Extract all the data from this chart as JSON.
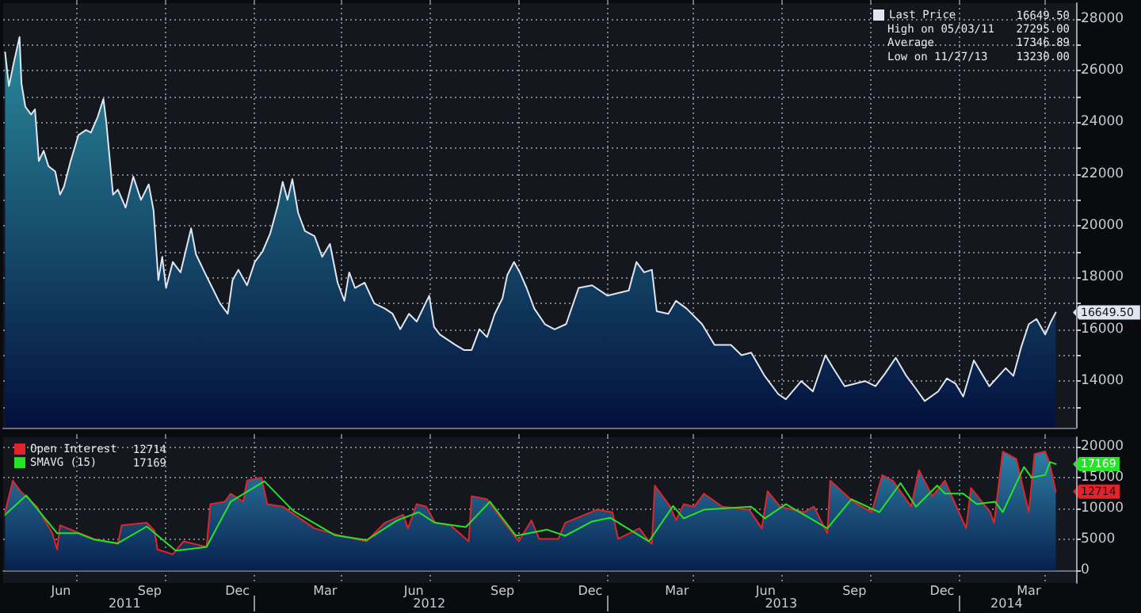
{
  "chart_data": [
    {
      "type": "area",
      "x": [
        "2011-04-18",
        "2011-04-22",
        "2011-04-27",
        "2011-05-03",
        "2011-05-05",
        "2011-05-09",
        "2011-05-15",
        "2011-05-19",
        "2011-05-23",
        "2011-05-28",
        "2011-06-02",
        "2011-06-09",
        "2011-06-14",
        "2011-06-18",
        "2011-06-25",
        "2011-07-03",
        "2011-07-11",
        "2011-07-16",
        "2011-07-23",
        "2011-07-29",
        "2011-08-01",
        "2011-08-08",
        "2011-08-13",
        "2011-08-21",
        "2011-08-29",
        "2011-09-06",
        "2011-09-14",
        "2011-09-19",
        "2011-09-24",
        "2011-09-28",
        "2011-10-02",
        "2011-10-09",
        "2011-10-17",
        "2011-10-28",
        "2011-11-02",
        "2011-11-11",
        "2011-11-19",
        "2011-11-27",
        "2011-12-05",
        "2011-12-10",
        "2011-12-16",
        "2011-12-25",
        "2012-01-02",
        "2012-01-10",
        "2012-01-18",
        "2012-01-26",
        "2012-01-31",
        "2012-02-05",
        "2012-02-10",
        "2012-02-16",
        "2012-02-23",
        "2012-03-04",
        "2012-03-12",
        "2012-03-20",
        "2012-03-28",
        "2012-04-04",
        "2012-04-09",
        "2012-04-15",
        "2012-04-25",
        "2012-05-05",
        "2012-05-16",
        "2012-05-24",
        "2012-06-01",
        "2012-06-10",
        "2012-06-18",
        "2012-07-01",
        "2012-07-06",
        "2012-07-12",
        "2012-07-20",
        "2012-07-28",
        "2012-08-06",
        "2012-08-14",
        "2012-08-22",
        "2012-08-30",
        "2012-09-07",
        "2012-09-15",
        "2012-09-20",
        "2012-09-27",
        "2012-10-03",
        "2012-10-10",
        "2012-10-18",
        "2012-10-29",
        "2012-11-08",
        "2012-11-20",
        "2012-12-03",
        "2012-12-17",
        "2013-01-02",
        "2013-01-24",
        "2013-02-01",
        "2013-02-09",
        "2013-02-17",
        "2013-02-22",
        "2013-03-06",
        "2013-03-14",
        "2013-03-25",
        "2013-04-10",
        "2013-04-23",
        "2013-05-10",
        "2013-05-21",
        "2013-05-31",
        "2013-06-14",
        "2013-06-28",
        "2013-07-06",
        "2013-07-22",
        "2013-08-03",
        "2013-08-16",
        "2013-08-24",
        "2013-09-05",
        "2013-09-26",
        "2013-10-07",
        "2013-10-17",
        "2013-10-28",
        "2013-11-08",
        "2013-11-18",
        "2013-11-27",
        "2013-12-11",
        "2013-12-20",
        "2013-12-29",
        "2014-01-06",
        "2014-01-17",
        "2014-01-25",
        "2014-02-02",
        "2014-02-19",
        "2014-02-27",
        "2014-03-07",
        "2014-03-15",
        "2014-03-23",
        "2014-04-01",
        "2014-04-07",
        "2014-04-12"
      ],
      "series": [
        {
          "name": "Last Price",
          "color": "#dfe6ee",
          "values": [
            26700,
            25400,
            26300,
            27295,
            25500,
            24600,
            24300,
            24500,
            22500,
            22900,
            22300,
            22100,
            21200,
            21500,
            22500,
            23500,
            23700,
            23600,
            24200,
            24900,
            24000,
            21200,
            21400,
            20700,
            21900,
            21000,
            21600,
            20600,
            17900,
            18800,
            17600,
            18600,
            18200,
            19900,
            18900,
            18200,
            17600,
            17000,
            16600,
            17900,
            18300,
            17700,
            18600,
            19000,
            19700,
            20800,
            21700,
            21000,
            21800,
            20500,
            19800,
            19600,
            18800,
            19300,
            17800,
            17100,
            18200,
            17600,
            17800,
            17000,
            16800,
            16600,
            16000,
            16600,
            16300,
            17300,
            16100,
            15800,
            15600,
            15400,
            15200,
            15200,
            16000,
            15700,
            16600,
            17200,
            18100,
            18600,
            18200,
            17600,
            16800,
            16200,
            16000,
            16200,
            17600,
            17700,
            17300,
            17500,
            18600,
            18200,
            18300,
            16700,
            16600,
            17100,
            16800,
            16200,
            15400,
            15400,
            15000,
            15100,
            14200,
            13500,
            13300,
            14000,
            13600,
            15000,
            14500,
            13800,
            14000,
            13800,
            14300,
            14900,
            14200,
            13700,
            13230,
            13600,
            14100,
            13900,
            13400,
            14800,
            14300,
            13800,
            14500,
            14200,
            15300,
            16200,
            16400,
            15800,
            16300,
            16649.5
          ]
        }
      ],
      "xlim": [
        "2011-04-16",
        "2014-05-03"
      ],
      "xticks": [
        {
          "value": "2011-07-01",
          "label": null
        },
        {
          "value": "2011-10-01",
          "label": null
        },
        {
          "value": "2012-01-01",
          "label": null
        },
        {
          "value": "2012-04-01",
          "label": null
        },
        {
          "value": "2012-07-01",
          "label": null
        },
        {
          "value": "2012-10-01",
          "label": null
        },
        {
          "value": "2013-01-01",
          "label": null
        },
        {
          "value": "2013-04-01",
          "label": null
        },
        {
          "value": "2013-07-01",
          "label": null
        },
        {
          "value": "2013-10-01",
          "label": null
        },
        {
          "value": "2014-01-01",
          "label": null
        },
        {
          "value": "2014-04-01",
          "label": null
        }
      ],
      "ylim": [
        12200,
        28600
      ],
      "yticks": [
        {
          "value": 13000,
          "label": null
        },
        14000,
        {
          "value": 15000,
          "label": null
        },
        16000,
        {
          "value": 17000,
          "label": null
        },
        18000,
        {
          "value": 19000,
          "label": null
        },
        20000,
        {
          "value": 21000,
          "label": null
        },
        22000,
        {
          "value": 23000,
          "label": null
        },
        24000,
        {
          "value": 25000,
          "label": null
        },
        26000,
        {
          "value": 27000,
          "label": null
        },
        28000
      ],
      "tick_labels": "y",
      "grid": true,
      "legend": "top right",
      "annotations": [
        "16649.50",
        "High on 05/03/11",
        "27295.00",
        "Average",
        "17346.89",
        "Low on 11/27/13",
        "13230.00",
        {
          "text": "16649.50",
          "x": "2014-04-12",
          "y": 16649.5
        }
      ]
    },
    {
      "type": "area",
      "series": [
        {
          "name": "Open Interest",
          "color": "#e0242a",
          "x": [
            "2011-04-18",
            "2011-04-26",
            "2011-05-04",
            "2011-05-21",
            "2011-06-06",
            "2011-06-11",
            "2011-06-14",
            "2011-06-28",
            "2011-07-19",
            "2011-08-13",
            "2011-08-17",
            "2011-09-12",
            "2011-09-20",
            "2011-09-23",
            "2011-10-09",
            "2011-10-20",
            "2011-11-13",
            "2011-11-17",
            "2011-12-02",
            "2011-12-08",
            "2011-12-21",
            "2011-12-25",
            "2012-01-09",
            "2012-01-15",
            "2012-01-31",
            "2012-03-04",
            "2012-03-31",
            "2012-04-27",
            "2012-05-16",
            "2012-06-04",
            "2012-06-09",
            "2012-06-18",
            "2012-06-28",
            "2012-07-07",
            "2012-07-23",
            "2012-08-11",
            "2012-08-14",
            "2012-08-30",
            "2012-09-15",
            "2012-10-02",
            "2012-10-15",
            "2012-10-23",
            "2012-11-12",
            "2012-11-19",
            "2012-12-22",
            "2013-01-07",
            "2013-01-13",
            "2013-02-04",
            "2013-02-14",
            "2013-02-17",
            "2013-02-20",
            "2013-03-08",
            "2013-03-14",
            "2013-03-22",
            "2013-04-02",
            "2013-04-12",
            "2013-05-01",
            "2013-05-29",
            "2013-06-11",
            "2013-06-17",
            "2013-06-30",
            "2013-07-25",
            "2013-08-04",
            "2013-08-18",
            "2013-08-21",
            "2013-09-14",
            "2013-10-03",
            "2013-10-14",
            "2013-10-25",
            "2013-11-13",
            "2013-11-21",
            "2013-12-05",
            "2013-12-18",
            "2014-01-09",
            "2014-01-14",
            "2014-02-03",
            "2014-02-07",
            "2014-02-16",
            "2014-03-02",
            "2014-03-15",
            "2014-03-21",
            "2014-04-01",
            "2014-04-06",
            "2014-04-12"
          ],
          "values": [
            9400,
            14500,
            12800,
            10300,
            6000,
            3400,
            7300,
            6400,
            5100,
            4300,
            7300,
            7700,
            6400,
            3400,
            2600,
            4700,
            3800,
            10700,
            11100,
            12400,
            11100,
            14500,
            15000,
            10700,
            10300,
            6800,
            5600,
            4700,
            7700,
            9000,
            6800,
            10700,
            10300,
            7700,
            7300,
            4700,
            12000,
            11500,
            8100,
            4700,
            8100,
            5100,
            5100,
            7700,
            9800,
            9400,
            5100,
            6800,
            4700,
            4300,
            13700,
            10300,
            8100,
            10700,
            10300,
            12400,
            10300,
            9800,
            6800,
            12800,
            10300,
            9400,
            10300,
            6000,
            14500,
            11100,
            9400,
            15400,
            14500,
            10300,
            16200,
            12000,
            14500,
            6800,
            13300,
            9400,
            7700,
            19200,
            18000,
            9400,
            18800,
            19200,
            17100,
            12714
          ]
        },
        {
          "name": "SMAVG (15)",
          "type": "line",
          "color": "#27e327",
          "x": [
            "2011-04-18",
            "2011-05-10",
            "2011-06-11",
            "2011-07-03",
            "2011-07-19",
            "2011-08-13",
            "2011-09-12",
            "2011-10-12",
            "2011-11-13",
            "2011-12-08",
            "2012-01-12",
            "2012-02-11",
            "2012-03-25",
            "2012-04-27",
            "2012-05-29",
            "2012-06-20",
            "2012-07-07",
            "2012-08-08",
            "2012-09-02",
            "2012-09-29",
            "2012-10-31",
            "2012-11-19",
            "2012-12-17",
            "2013-01-05",
            "2013-02-14",
            "2013-03-11",
            "2013-03-22",
            "2013-04-12",
            "2013-05-31",
            "2013-06-14",
            "2013-07-06",
            "2013-08-18",
            "2013-09-12",
            "2013-10-11",
            "2013-11-02",
            "2013-11-18",
            "2013-12-10",
            "2013-12-18",
            "2014-01-06",
            "2014-01-20",
            "2014-02-08",
            "2014-02-16",
            "2014-03-10",
            "2014-03-18",
            "2014-04-01",
            "2014-04-06",
            "2014-04-12"
          ],
          "values": [
            9000,
            12100,
            6000,
            6000,
            5000,
            4400,
            7100,
            3200,
            3800,
            11100,
            14400,
            9600,
            5700,
            4900,
            8100,
            9400,
            7700,
            7000,
            11100,
            5600,
            6600,
            5600,
            7900,
            8500,
            4700,
            10400,
            8400,
            9800,
            10300,
            8400,
            10700,
            6800,
            11500,
            9400,
            14100,
            10300,
            13700,
            12400,
            12400,
            10700,
            11100,
            9400,
            16700,
            15000,
            15400,
            17500,
            17169
          ]
        }
      ],
      "xlim": [
        "2011-04-16",
        "2014-05-03"
      ],
      "xticks": [
        {
          "value": "2011-06-15",
          "label": "Jun"
        },
        {
          "value": "2011-09-15",
          "label": "Sep"
        },
        {
          "value": "2011-12-15",
          "label": "Dec"
        },
        {
          "value": "2012-03-15",
          "label": "Mar"
        },
        {
          "value": "2012-06-15",
          "label": "Jun"
        },
        {
          "value": "2012-09-15",
          "label": "Sep"
        },
        {
          "value": "2012-12-15",
          "label": "Dec"
        },
        {
          "value": "2013-03-15",
          "label": "Mar"
        },
        {
          "value": "2013-06-15",
          "label": "Jun"
        },
        {
          "value": "2013-09-15",
          "label": "Sep"
        },
        {
          "value": "2013-12-15",
          "label": "Dec"
        },
        {
          "value": "2014-03-15",
          "label": "Mar"
        },
        {
          "value": "2011-07-01",
          "label": null
        },
        {
          "value": "2011-10-01",
          "label": null
        },
        {
          "value": "2012-01-01",
          "label": null
        },
        {
          "value": "2012-04-01",
          "label": null
        },
        {
          "value": "2012-07-01",
          "label": null
        },
        {
          "value": "2012-10-01",
          "label": null
        },
        {
          "value": "2013-01-01",
          "label": null
        },
        {
          "value": "2013-04-01",
          "label": null
        },
        {
          "value": "2013-07-01",
          "label": null
        },
        {
          "value": "2013-10-01",
          "label": null
        },
        {
          "value": "2014-01-01",
          "label": null
        },
        {
          "value": "2014-04-01",
          "label": null
        }
      ],
      "x2lim": [
        "2011-04-16",
        "2014-05-03"
      ],
      "x2ticks": [
        {
          "value": "2011-08-20",
          "label": "2011"
        },
        {
          "value": "2012-07-01",
          "label": "2012"
        },
        {
          "value": "2013-07-01",
          "label": "2013"
        },
        {
          "value": "2014-02-20",
          "label": "2014"
        },
        {
          "value": "2012-01-01",
          "label": null
        },
        {
          "value": "2013-01-01",
          "label": null
        },
        {
          "value": "2014-01-01",
          "label": null
        }
      ],
      "ylim": [
        -2000,
        21500
      ],
      "yticks": [
        0,
        5000,
        10000,
        15000,
        20000
      ],
      "grid": true,
      "legend": "top left",
      "annotations": [
        "12714",
        "17169",
        {
          "text": "12714",
          "x": "2014-04-12",
          "y": 12714
        },
        {
          "text": "17169",
          "x": "2014-04-12",
          "y": 17169
        }
      ]
    }
  ]
}
